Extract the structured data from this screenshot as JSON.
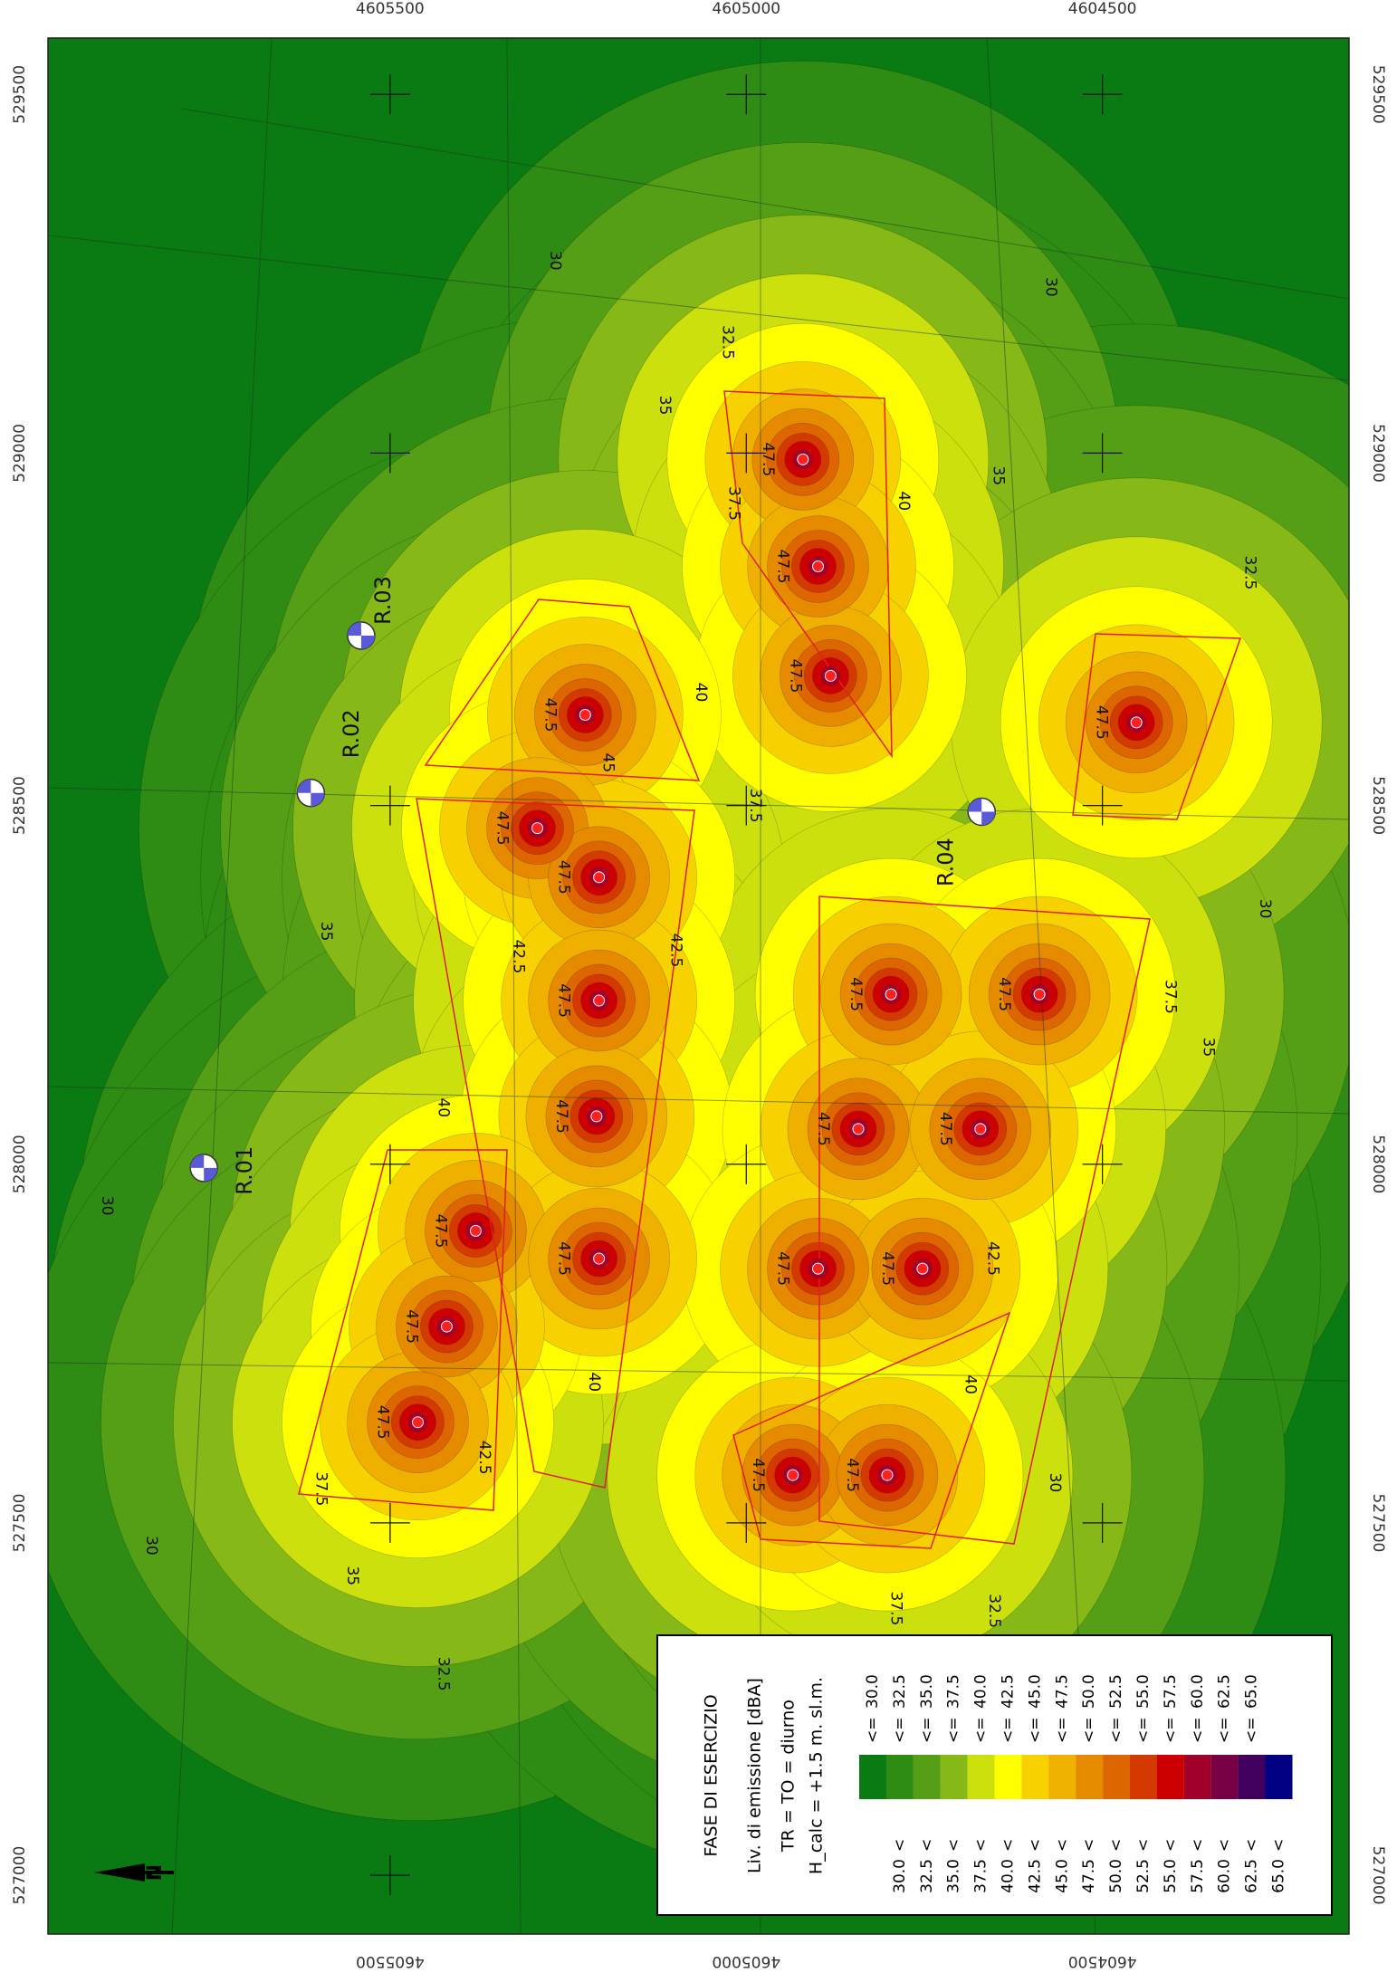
{
  "map": {
    "top_labels": [
      "4605500",
      "4605000",
      "4604500"
    ],
    "bottom_labels": [
      "4605500",
      "4605000",
      "4604500"
    ],
    "left_labels": [
      "529500",
      "529000",
      "528500",
      "528000",
      "527500",
      "527000"
    ],
    "right_labels": [
      "529500",
      "529000",
      "528500",
      "528000",
      "527500",
      "527000"
    ],
    "north": "N",
    "receptors": [
      "R.01",
      "R.02",
      "R.03",
      "R.04"
    ],
    "contour_labels": [
      "30",
      "30",
      "32.5",
      "35",
      "35",
      "40",
      "37.5",
      "40",
      "45",
      "37.5",
      "32.5",
      "42.5",
      "42.5",
      "35",
      "40",
      "37.5",
      "35",
      "30",
      "40",
      "42.5",
      "37.5",
      "35",
      "32.5",
      "30",
      "30",
      "40",
      "42.5",
      "30",
      "37.5",
      "32.5",
      "47.5",
      "47.5",
      "47.5",
      "47.5",
      "47.5",
      "47.5",
      "47.5",
      "47.5",
      "47.5",
      "47.5",
      "47.5",
      "47.5",
      "47.5",
      "47.5",
      "47.5",
      "47.5",
      "47.5",
      "47.5",
      "47.5",
      "47.5",
      "47.5"
    ]
  },
  "legend": {
    "title": "FASE DI ESERCIZIO",
    "lines": [
      "Liv. di emissione [dBA]",
      "TR = TO = diurno",
      "H_calc = +1.5 m. sl.m."
    ],
    "lt": "<",
    "le": "<=",
    "rows": [
      {
        "upper": "30.0",
        "color": "#0a7a12"
      },
      {
        "lower": "30.0",
        "upper": "32.5",
        "color": "#2e8c14"
      },
      {
        "lower": "32.5",
        "upper": "35.0",
        "color": "#559f16"
      },
      {
        "lower": "35.0",
        "upper": "37.5",
        "color": "#86b817"
      },
      {
        "lower": "37.5",
        "upper": "40.0",
        "color": "#cbe00c"
      },
      {
        "lower": "40.0",
        "upper": "42.5",
        "color": "#ffff00"
      },
      {
        "lower": "42.5",
        "upper": "45.0",
        "color": "#f8d200"
      },
      {
        "lower": "45.0",
        "upper": "47.5",
        "color": "#f0b000"
      },
      {
        "lower": "47.5",
        "upper": "50.0",
        "color": "#e68a00"
      },
      {
        "lower": "50.0",
        "upper": "52.5",
        "color": "#dd6600"
      },
      {
        "lower": "52.5",
        "upper": "55.0",
        "color": "#d43a00"
      },
      {
        "lower": "55.0",
        "upper": "57.5",
        "color": "#cc0000"
      },
      {
        "lower": "57.5",
        "upper": "60.0",
        "color": "#a0002a"
      },
      {
        "lower": "60.0",
        "upper": "62.5",
        "color": "#780044"
      },
      {
        "lower": "62.5",
        "upper": "65.0",
        "color": "#42005e"
      },
      {
        "lower": "65.0",
        "color": "#000080"
      }
    ]
  }
}
